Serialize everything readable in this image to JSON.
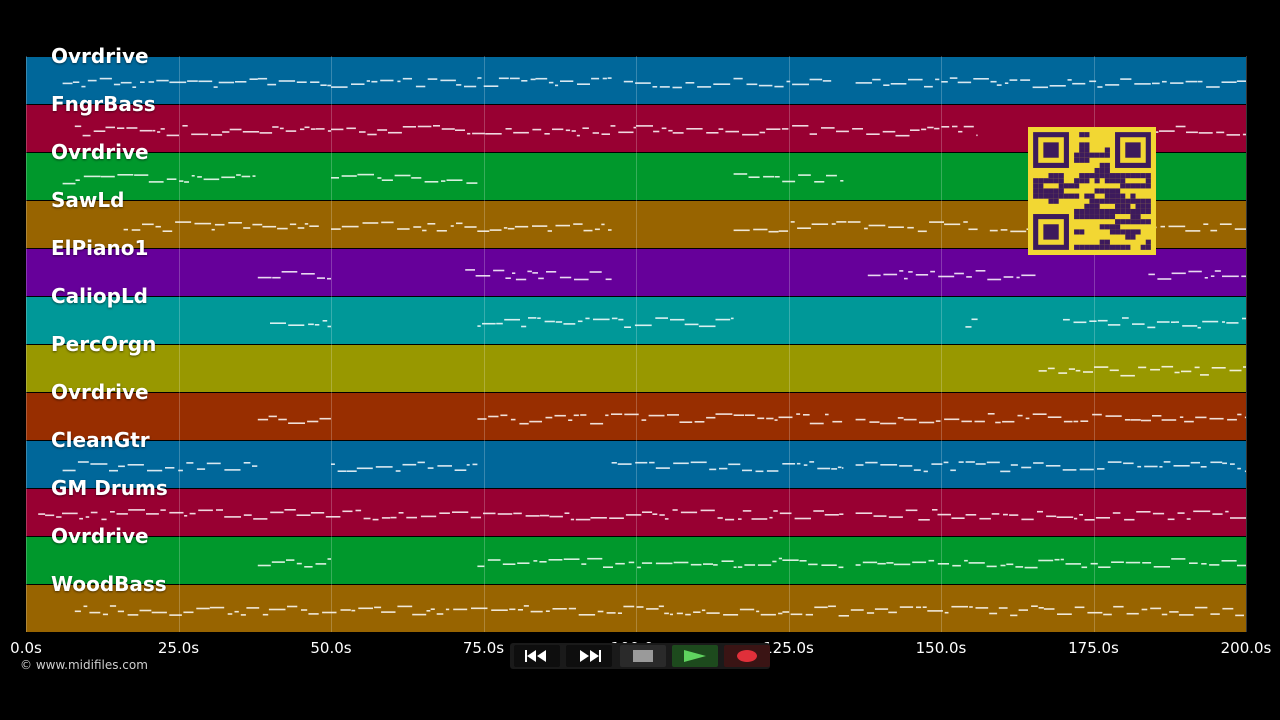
{
  "tracks": [
    {
      "label": "Ovrdrive",
      "color": "#00679a"
    },
    {
      "label": "FngrBass",
      "color": "#980032"
    },
    {
      "label": "Ovrdrive",
      "color": "#00982c"
    },
    {
      "label": "SawLd",
      "color": "#986400"
    },
    {
      "label": "ElPiano1",
      "color": "#66009a"
    },
    {
      "label": "CaliopLd",
      "color": "#009898"
    },
    {
      "label": "PercOrgn",
      "color": "#989800"
    },
    {
      "label": "Ovrdrive",
      "color": "#982e00"
    },
    {
      "label": "CleanGtr",
      "color": "#00679a"
    },
    {
      "label": "GM Drums",
      "color": "#980032"
    },
    {
      "label": "Ovrdrive",
      "color": "#00982c"
    },
    {
      "label": "WoodBass",
      "color": "#986400"
    }
  ],
  "timeline": {
    "ticks": [
      "0.0s",
      "25.0s",
      "50.0s",
      "75.0s",
      "100.0s",
      "125.0s",
      "150.0s",
      "175.0s",
      "200.0s"
    ],
    "duration_s": 200
  },
  "copyright": "© www.midifiles.com",
  "transport": {
    "buttons": [
      {
        "name": "rewind-icon",
        "color": "#fff"
      },
      {
        "name": "fast-forward-icon",
        "color": "#fff"
      },
      {
        "name": "stop-icon",
        "color": "#9a9a9a"
      },
      {
        "name": "play-icon",
        "color": "#5fd35f"
      },
      {
        "name": "record-icon",
        "color": "#e0303a"
      }
    ]
  },
  "overlay": {
    "qr_code": "qr-code-icon",
    "qr_fg": "#3d1a5c",
    "qr_bg": "#f2d733"
  }
}
